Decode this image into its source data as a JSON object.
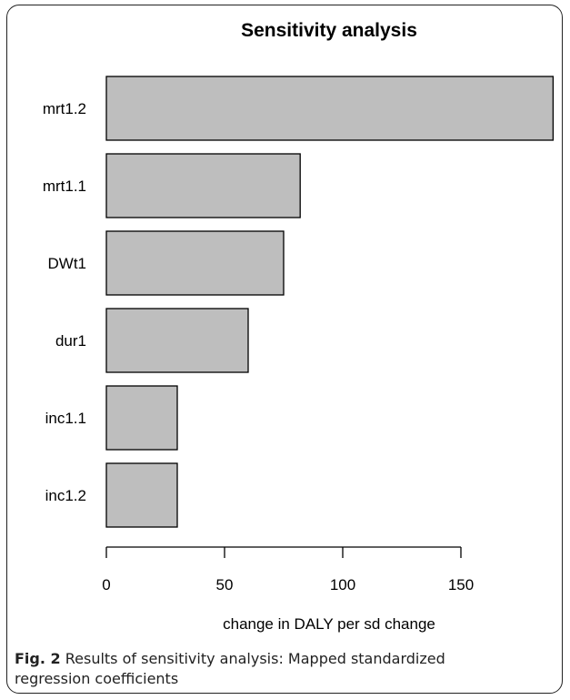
{
  "chart_data": {
    "type": "bar",
    "orientation": "horizontal",
    "title": "Sensitivity analysis",
    "xlabel": "change in DALY per sd change",
    "ylabel": "",
    "categories": [
      "mrt1.2",
      "mrt1.1",
      "DWt1",
      "dur1",
      "inc1.1",
      "inc1.2"
    ],
    "values": [
      189,
      82,
      75,
      60,
      30,
      30
    ],
    "xlim": [
      0,
      190
    ],
    "xticks": [
      0,
      50,
      100,
      150
    ],
    "grid": false,
    "colors": {
      "bar_fill": "#bebebe",
      "bar_stroke": "#000000"
    }
  },
  "caption": {
    "label": "Fig. 2",
    "text": " Results of sensitivity analysis: Mapped standardized regression coefficients"
  }
}
